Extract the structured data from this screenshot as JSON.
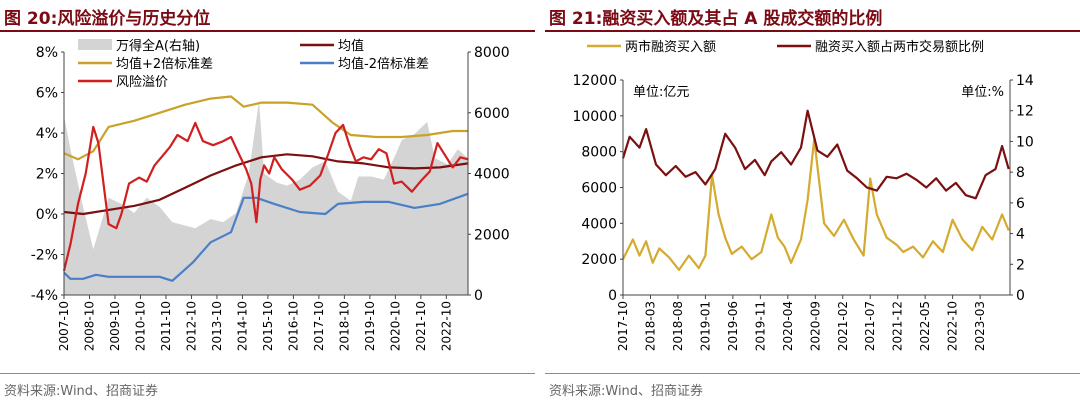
{
  "left_panel": {
    "title": "图 20:风险溢价与历史分位",
    "source": "资料来源:Wind、招商证券"
  },
  "right_panel": {
    "title": "图 21:融资买入额及其占 A 股成交额的比例",
    "source": "资料来源:Wind、招商证券"
  },
  "chart_data": [
    {
      "type": "line",
      "title": "风险溢价与历史分位",
      "left_axis": {
        "ylim": [
          -4,
          8
        ],
        "ticks": [
          "-4%",
          "-2%",
          "0%",
          "2%",
          "4%",
          "6%",
          "8%"
        ]
      },
      "right_axis": {
        "ylim": [
          0,
          8000
        ],
        "ticks": [
          "0",
          "2000",
          "4000",
          "6000",
          "8000"
        ]
      },
      "x_ticks": [
        "2007-10",
        "2008-10",
        "2009-10",
        "2010-10",
        "2011-10",
        "2012-10",
        "2013-10",
        "2014-10",
        "2015-10",
        "2016-10",
        "2017-10",
        "2018-10",
        "2019-10",
        "2020-10",
        "2021-10",
        "2022-10"
      ],
      "legend": {
        "position": "top",
        "entries": [
          "万得全A(右轴)",
          "均值",
          "均值+2倍标准差",
          "均值-2倍标准差",
          "风险溢价"
        ]
      },
      "colors": {
        "area": "#d4d4d4",
        "mean": "#7a1010",
        "upper": "#c9a227",
        "lower": "#4a7fc8",
        "premium": "#d11f1f"
      },
      "series": [
        {
          "name": "万得全A(右轴)",
          "axis": "right",
          "x": [
            2007.75,
            2008.0,
            2008.5,
            2008.9,
            2009.5,
            2010.0,
            2010.5,
            2011.0,
            2011.5,
            2012.0,
            2012.9,
            2013.5,
            2014.0,
            2014.5,
            2015.0,
            2015.4,
            2015.6,
            2016.1,
            2016.5,
            2017.0,
            2017.5,
            2018.0,
            2018.5,
            2019.0,
            2019.3,
            2019.8,
            2020.3,
            2020.8,
            2021.0,
            2021.5,
            2022.0,
            2022.3,
            2022.8,
            2023.2,
            2023.6
          ],
          "values": [
            5900,
            4800,
            2900,
            1500,
            3200,
            3000,
            2700,
            3200,
            2900,
            2400,
            2200,
            2500,
            2400,
            2700,
            4000,
            6400,
            4000,
            3700,
            3600,
            3800,
            4200,
            4400,
            3400,
            3100,
            3900,
            3900,
            3800,
            4700,
            5100,
            5300,
            5700,
            4500,
            4300,
            4800,
            4500
          ]
        },
        {
          "name": "均值",
          "axis": "left",
          "x": [
            2007.75,
            2008.5,
            2009.5,
            2010.5,
            2011.5,
            2012.5,
            2013.5,
            2014.5,
            2015.5,
            2016.5,
            2017.5,
            2018.5,
            2019.5,
            2020.5,
            2021.5,
            2022.5,
            2023.6
          ],
          "values": [
            0.1,
            0.0,
            0.2,
            0.4,
            0.7,
            1.3,
            1.9,
            2.4,
            2.8,
            2.95,
            2.85,
            2.6,
            2.5,
            2.3,
            2.25,
            2.3,
            2.5
          ]
        },
        {
          "name": "均值+2倍标准差",
          "axis": "left",
          "x": [
            2007.75,
            2008.3,
            2008.9,
            2009.5,
            2010.5,
            2011.5,
            2012.5,
            2013.5,
            2014.3,
            2014.8,
            2015.5,
            2016.5,
            2017.5,
            2018.3,
            2019.0,
            2020.0,
            2021.0,
            2022.0,
            2023.0,
            2023.6
          ],
          "values": [
            3.0,
            2.7,
            3.1,
            4.3,
            4.6,
            5.0,
            5.4,
            5.7,
            5.8,
            5.3,
            5.5,
            5.5,
            5.4,
            4.5,
            3.9,
            3.8,
            3.8,
            3.9,
            4.1,
            4.1
          ]
        },
        {
          "name": "均值-2倍标准差",
          "axis": "left",
          "x": [
            2007.75,
            2008.0,
            2008.5,
            2009.0,
            2009.5,
            2010.5,
            2011.5,
            2012.0,
            2012.8,
            2013.5,
            2014.3,
            2014.8,
            2015.3,
            2016.0,
            2017.0,
            2018.0,
            2018.5,
            2019.5,
            2020.5,
            2021.5,
            2022.5,
            2023.6
          ],
          "values": [
            -2.9,
            -3.2,
            -3.2,
            -3.0,
            -3.1,
            -3.1,
            -3.1,
            -3.3,
            -2.4,
            -1.4,
            -0.9,
            0.8,
            0.8,
            0.5,
            0.1,
            0.0,
            0.5,
            0.6,
            0.6,
            0.3,
            0.5,
            1.0
          ]
        },
        {
          "name": "风险溢价",
          "axis": "left",
          "x": [
            2007.75,
            2008.0,
            2008.3,
            2008.6,
            2008.9,
            2009.1,
            2009.5,
            2009.8,
            2010.0,
            2010.3,
            2010.7,
            2011.0,
            2011.3,
            2011.7,
            2011.9,
            2012.2,
            2012.6,
            2012.9,
            2013.2,
            2013.6,
            2014.0,
            2014.3,
            2014.6,
            2014.9,
            2015.1,
            2015.3,
            2015.45,
            2015.6,
            2015.8,
            2016.0,
            2016.3,
            2016.7,
            2017.0,
            2017.4,
            2017.8,
            2018.1,
            2018.4,
            2018.7,
            2018.95,
            2019.2,
            2019.5,
            2019.8,
            2020.1,
            2020.4,
            2020.7,
            2021.0,
            2021.4,
            2021.8,
            2022.1,
            2022.4,
            2022.7,
            2023.0,
            2023.3,
            2023.6
          ],
          "values": [
            -2.8,
            -1.5,
            0.5,
            2.0,
            4.3,
            3.5,
            -0.5,
            -0.7,
            0.0,
            1.5,
            1.8,
            1.6,
            2.4,
            3.0,
            3.3,
            3.9,
            3.6,
            4.5,
            3.6,
            3.4,
            3.6,
            3.8,
            3.0,
            2.2,
            1.5,
            -0.4,
            1.7,
            2.4,
            2.0,
            2.8,
            2.2,
            1.7,
            1.2,
            1.4,
            1.9,
            2.9,
            4.0,
            4.4,
            3.4,
            2.6,
            2.8,
            2.7,
            3.2,
            3.0,
            1.5,
            1.6,
            1.1,
            1.7,
            2.1,
            3.5,
            2.9,
            2.3,
            2.8,
            2.7
          ]
        }
      ]
    },
    {
      "type": "line",
      "title": "融资买入额及其占 A 股成交额的比例",
      "left_axis": {
        "ylim": [
          0,
          12000
        ],
        "ticks": [
          "0",
          "2000",
          "4000",
          "6000",
          "8000",
          "10000",
          "12000"
        ],
        "unit": "单位:亿元"
      },
      "right_axis": {
        "ylim": [
          0,
          14
        ],
        "ticks": [
          "0",
          "2",
          "4",
          "6",
          "8",
          "10",
          "12",
          "14"
        ],
        "unit": "单位:%"
      },
      "x_ticks": [
        "2017-10",
        "2018-03",
        "2018-08",
        "2019-01",
        "2019-06",
        "2019-11",
        "2020-04",
        "2020-09",
        "2021-02",
        "2021-07",
        "2021-12",
        "2022-05",
        "2022-10",
        "2023-03"
      ],
      "legend": {
        "position": "top",
        "entries": [
          "两市融资买入额",
          "融资买入额占两市交易额比例"
        ]
      },
      "colors": {
        "amount": "#d4aa2f",
        "ratio": "#7a1010"
      },
      "series": [
        {
          "name": "两市融资买入额",
          "axis": "left",
          "x": [
            2017.75,
            2017.9,
            2018.0,
            2018.1,
            2018.2,
            2018.3,
            2018.45,
            2018.6,
            2018.75,
            2018.9,
            2019.0,
            2019.1,
            2019.2,
            2019.3,
            2019.4,
            2019.55,
            2019.7,
            2019.85,
            2020.0,
            2020.1,
            2020.2,
            2020.3,
            2020.45,
            2020.55,
            2020.65,
            2020.8,
            2020.95,
            2021.1,
            2021.25,
            2021.4,
            2021.5,
            2021.6,
            2021.75,
            2021.9,
            2022.0,
            2022.15,
            2022.3,
            2022.45,
            2022.6,
            2022.75,
            2022.9,
            2023.05,
            2023.2,
            2023.35,
            2023.5,
            2023.6
          ],
          "values": [
            2000,
            3100,
            2200,
            3000,
            1800,
            2600,
            2100,
            1400,
            2200,
            1500,
            2200,
            6700,
            4500,
            3200,
            2300,
            2700,
            2000,
            2400,
            4500,
            3200,
            2700,
            1800,
            3100,
            5300,
            8700,
            4000,
            3300,
            4200,
            3100,
            2200,
            6500,
            4500,
            3200,
            2800,
            2400,
            2700,
            2100,
            3000,
            2400,
            4200,
            3100,
            2500,
            3800,
            3100,
            4500,
            3600
          ]
        },
        {
          "name": "融资买入额占两市交易额比例",
          "axis": "right",
          "x": [
            2017.75,
            2017.85,
            2018.0,
            2018.1,
            2018.25,
            2018.4,
            2018.55,
            2018.7,
            2018.85,
            2019.0,
            2019.15,
            2019.3,
            2019.45,
            2019.6,
            2019.75,
            2019.9,
            2020.0,
            2020.15,
            2020.3,
            2020.45,
            2020.55,
            2020.7,
            2020.85,
            2021.0,
            2021.15,
            2021.3,
            2021.45,
            2021.6,
            2021.75,
            2021.9,
            2022.05,
            2022.2,
            2022.35,
            2022.5,
            2022.65,
            2022.8,
            2022.95,
            2023.1,
            2023.25,
            2023.4,
            2023.5,
            2023.6
          ],
          "values": [
            8.9,
            10.3,
            9.6,
            10.8,
            8.5,
            7.8,
            8.4,
            7.7,
            8.0,
            7.2,
            8.2,
            10.5,
            9.6,
            8.2,
            8.8,
            7.8,
            8.7,
            9.3,
            8.5,
            9.6,
            12.0,
            9.4,
            9.0,
            9.8,
            8.1,
            7.6,
            7.0,
            6.8,
            7.7,
            7.6,
            7.9,
            7.5,
            7.0,
            7.6,
            6.8,
            7.3,
            6.5,
            6.3,
            7.8,
            8.2,
            9.7,
            8.2
          ]
        }
      ]
    }
  ]
}
